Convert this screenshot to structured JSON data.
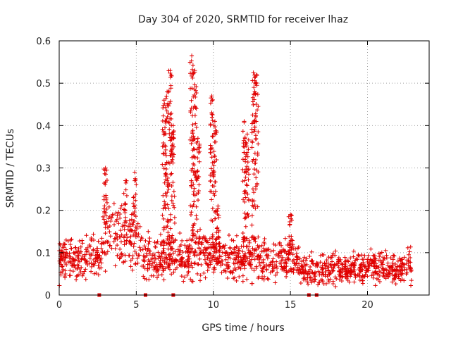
{
  "chart_data": {
    "type": "scatter",
    "title": "Day 304 of 2020, SRMTID for receiver lhaz",
    "xlabel": "GPS time / hours",
    "ylabel": "SRMTID / TECUs",
    "xlim": [
      0,
      24
    ],
    "ylim": [
      0,
      0.6
    ],
    "xticks": [
      0,
      5,
      10,
      15,
      20
    ],
    "yticks": [
      0,
      0.1,
      0.2,
      0.3,
      0.4,
      0.5,
      0.6
    ],
    "xtick_labels": [
      "0",
      "5",
      "10",
      "15",
      "20"
    ],
    "ytick_labels": [
      "0",
      "0.1",
      "0.2",
      "0.3",
      "0.4",
      "0.5",
      "0.6"
    ],
    "grid": true,
    "series": [
      {
        "name": "SRMTID",
        "marker": "plus",
        "color": "#e00000",
        "base_level": [
          [
            0.0,
            0.085
          ],
          [
            1.0,
            0.085
          ],
          [
            2.0,
            0.09
          ],
          [
            2.7,
            0.09
          ],
          [
            3.0,
            0.15
          ],
          [
            4.0,
            0.13
          ],
          [
            5.0,
            0.12
          ],
          [
            5.5,
            0.09
          ],
          [
            6.5,
            0.08
          ],
          [
            7.0,
            0.1
          ],
          [
            8.0,
            0.09
          ],
          [
            9.0,
            0.1
          ],
          [
            10.0,
            0.09
          ],
          [
            11.0,
            0.08
          ],
          [
            12.0,
            0.1
          ],
          [
            13.0,
            0.08
          ],
          [
            14.0,
            0.08
          ],
          [
            15.0,
            0.09
          ],
          [
            16.0,
            0.06
          ],
          [
            18.0,
            0.06
          ],
          [
            20.0,
            0.065
          ],
          [
            22.0,
            0.06
          ],
          [
            22.9,
            0.07
          ]
        ],
        "peaks": [
          {
            "x": 3.0,
            "top": 0.3
          },
          {
            "x": 4.3,
            "top": 0.27
          },
          {
            "x": 4.9,
            "top": 0.29
          },
          {
            "x": 6.8,
            "top": 0.46
          },
          {
            "x": 7.0,
            "top": 0.48
          },
          {
            "x": 7.2,
            "top": 0.53
          },
          {
            "x": 7.4,
            "top": 0.4
          },
          {
            "x": 8.6,
            "top": 0.565
          },
          {
            "x": 8.8,
            "top": 0.53
          },
          {
            "x": 9.0,
            "top": 0.37
          },
          {
            "x": 9.9,
            "top": 0.47
          },
          {
            "x": 10.1,
            "top": 0.41
          },
          {
            "x": 10.3,
            "top": 0.21
          },
          {
            "x": 12.0,
            "top": 0.41
          },
          {
            "x": 12.2,
            "top": 0.38
          },
          {
            "x": 12.6,
            "top": 0.525
          },
          {
            "x": 12.8,
            "top": 0.52
          },
          {
            "x": 15.0,
            "top": 0.19
          }
        ]
      }
    ],
    "zero_markers": [
      2.6,
      5.6,
      7.4,
      16.2,
      16.7
    ]
  }
}
